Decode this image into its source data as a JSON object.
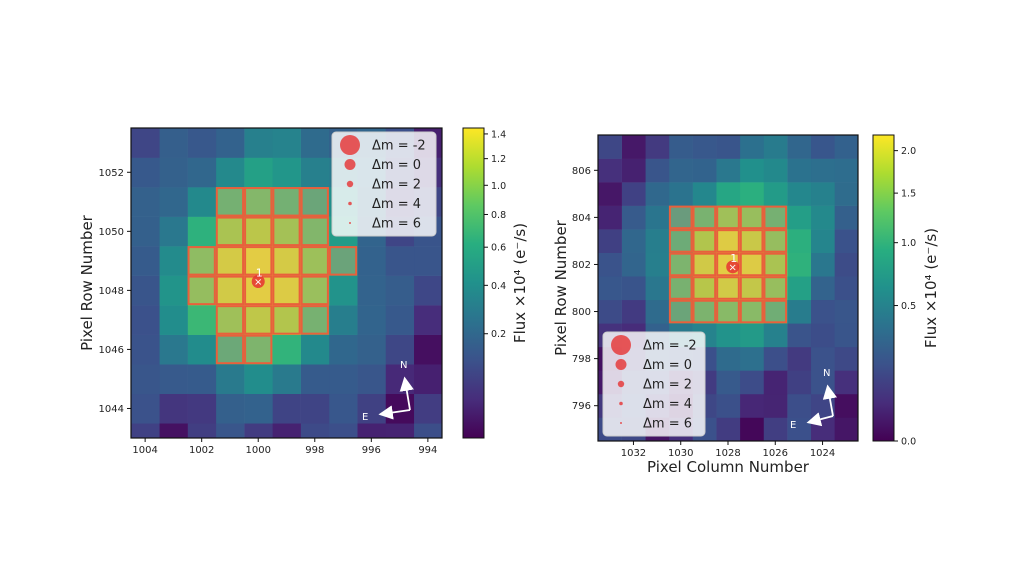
{
  "colors": {
    "aperture_edge": "#e8603c",
    "aperture_fill": "#c4aa6a",
    "target_marker": "#e63232",
    "compass": "#ffffff"
  },
  "chart_data": [
    {
      "type": "heatmap",
      "panel": "left",
      "x_ticks": [
        "1004",
        "1002",
        "1000",
        "998",
        "996",
        "994"
      ],
      "x_tick_values": [
        1004,
        1002,
        1000,
        998,
        996,
        994
      ],
      "y_ticks": [
        "1052",
        "1050",
        "1048",
        "1046",
        "1044"
      ],
      "y_tick_values": [
        1052,
        1050,
        1048,
        1046,
        1044
      ],
      "xlim": [
        1004.5,
        993.5
      ],
      "ylim": [
        1043,
        1053.5
      ],
      "xlabel": "",
      "ylabel": "Pixel Row Number",
      "colorbar_label": "Flux ×10⁴ (e⁻/s)",
      "colorbar_ticks": [
        "0.2",
        "0.4",
        "0.6",
        "0.8",
        "1.0",
        "1.2",
        "1.4"
      ],
      "colorbar_tick_values": [
        0.2,
        0.4,
        0.6,
        0.8,
        1.0,
        1.2,
        1.4
      ],
      "colorbar_range": [
        0,
        1.45
      ],
      "colorbar_stretch": "power",
      "target": {
        "x": 1000,
        "y": 1048.3,
        "label": "1"
      },
      "compass": {
        "north": "N",
        "east": "E"
      },
      "aperture": [
        [
          1001,
          1051
        ],
        [
          1000,
          1051
        ],
        [
          999,
          1051
        ],
        [
          998,
          1051
        ],
        [
          1001,
          1050
        ],
        [
          1000,
          1050
        ],
        [
          999,
          1050
        ],
        [
          998,
          1050
        ],
        [
          1002,
          1049
        ],
        [
          1001,
          1049
        ],
        [
          1000,
          1049
        ],
        [
          999,
          1049
        ],
        [
          998,
          1049
        ],
        [
          997,
          1049
        ],
        [
          1002,
          1048
        ],
        [
          1001,
          1048
        ],
        [
          1000,
          1048
        ],
        [
          999,
          1048
        ],
        [
          998,
          1048
        ],
        [
          1001,
          1047
        ],
        [
          1000,
          1047
        ],
        [
          999,
          1047
        ],
        [
          998,
          1047
        ],
        [
          1001,
          1046
        ],
        [
          1000,
          1046
        ]
      ],
      "legend": {
        "position": "upper-right",
        "entries": [
          {
            "label": "Δm = -2"
          },
          {
            "label": "Δm =  0"
          },
          {
            "label": "Δm =  2"
          },
          {
            "label": "Δm =  4"
          },
          {
            "label": "Δm =  6"
          }
        ]
      }
    },
    {
      "type": "heatmap",
      "panel": "right",
      "x_ticks": [
        "1032",
        "1030",
        "1028",
        "1026",
        "1024"
      ],
      "x_tick_values": [
        1032,
        1030,
        1028,
        1026,
        1024
      ],
      "y_ticks": [
        "806",
        "804",
        "802",
        "800",
        "798",
        "796"
      ],
      "y_tick_values": [
        806,
        804,
        802,
        800,
        798,
        796
      ],
      "xlim": [
        1033.5,
        1022.5
      ],
      "ylim": [
        794.5,
        807.5
      ],
      "xlabel": "Pixel Column Number",
      "ylabel": "Pixel Row Number",
      "colorbar_label": "Flux ×10⁴ (e⁻/s)",
      "colorbar_ticks": [
        "0.0",
        "0.5",
        "1.0",
        "1.5",
        "2.0"
      ],
      "colorbar_tick_values": [
        0.0,
        0.5,
        1.0,
        1.5,
        2.0
      ],
      "colorbar_range": [
        0,
        2.2
      ],
      "colorbar_stretch": "power",
      "target": {
        "x": 1027.8,
        "y": 801.9,
        "label": "1"
      },
      "compass": {
        "north": "N",
        "east": "E"
      },
      "aperture": [
        [
          1030,
          804
        ],
        [
          1029,
          804
        ],
        [
          1028,
          804
        ],
        [
          1027,
          804
        ],
        [
          1026,
          804
        ],
        [
          1030,
          803
        ],
        [
          1029,
          803
        ],
        [
          1028,
          803
        ],
        [
          1027,
          803
        ],
        [
          1026,
          803
        ],
        [
          1030,
          802
        ],
        [
          1029,
          802
        ],
        [
          1028,
          802
        ],
        [
          1027,
          802
        ],
        [
          1026,
          802
        ],
        [
          1030,
          801
        ],
        [
          1029,
          801
        ],
        [
          1028,
          801
        ],
        [
          1027,
          801
        ],
        [
          1026,
          801
        ],
        [
          1030,
          800
        ],
        [
          1029,
          800
        ],
        [
          1028,
          800
        ],
        [
          1027,
          800
        ],
        [
          1026,
          800
        ]
      ],
      "legend": {
        "position": "lower-left",
        "entries": [
          {
            "label": "Δm = -2"
          },
          {
            "label": "Δm =  0"
          },
          {
            "label": "Δm =  2"
          },
          {
            "label": "Δm =  4"
          },
          {
            "label": "Δm =  6"
          }
        ]
      }
    }
  ]
}
